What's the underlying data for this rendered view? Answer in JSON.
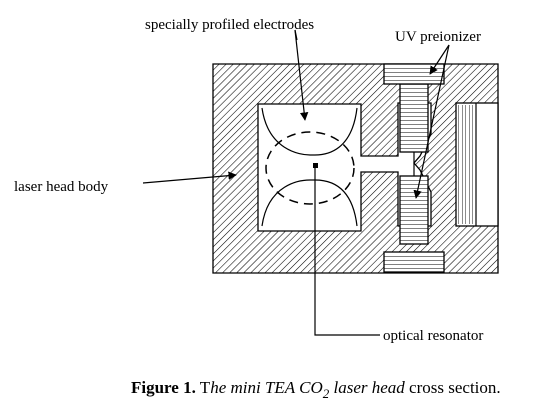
{
  "labels": {
    "electrodes": "specially profiled electrodes",
    "preionizer": "UV preionizer",
    "body": "laser head body",
    "resonator": "optical resonator"
  },
  "caption": {
    "bold": "Figure 1.",
    "t1": " T",
    "italic": "he mini TEA CO",
    "sub": "2",
    "italic2": " laser head",
    "rest": " cross section."
  }
}
